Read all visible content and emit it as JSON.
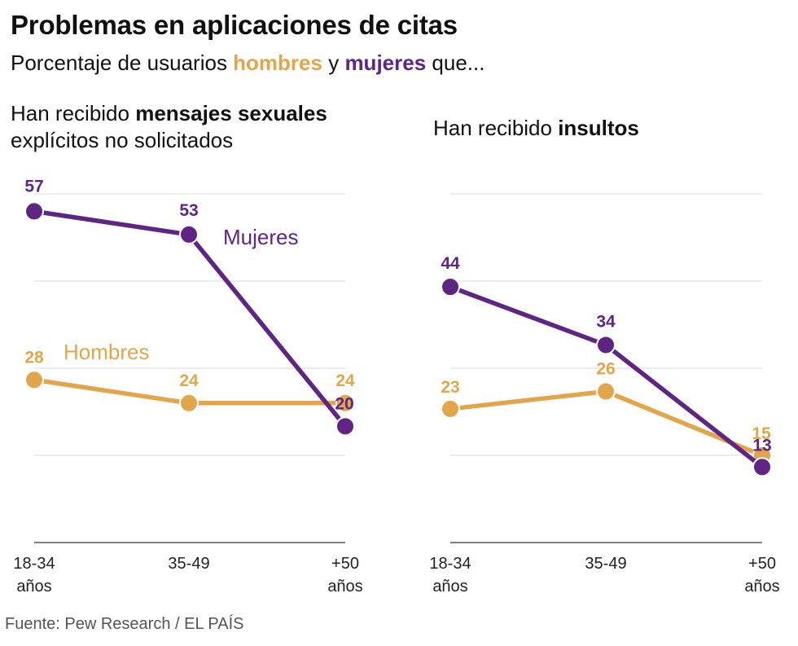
{
  "title": "Problemas en aplicaciones de citas",
  "subtitle": {
    "prefix": "Porcentaje de usuarios ",
    "men": "hombres",
    "middle": " y ",
    "women": "mujeres",
    "suffix": " que..."
  },
  "source": "Fuente: Pew Research / EL PAÍS",
  "colors": {
    "men": "#e2a54a",
    "women": "#5f2584",
    "grid": "#d9d9d9",
    "axis": "#555555"
  },
  "chart_data": [
    {
      "type": "line",
      "title_prefix": "Han recibido ",
      "title_bold": "mensajes sexuales",
      "title_line2": "explícitos no solicitados",
      "categories": [
        [
          "18-34",
          "años"
        ],
        [
          "35-49"
        ],
        [
          "+50",
          "años"
        ]
      ],
      "ylim": [
        0,
        60
      ],
      "grid": true,
      "series": [
        {
          "key": "women",
          "name": "Mujeres",
          "values": [
            57,
            53,
            20
          ]
        },
        {
          "key": "men",
          "name": "Hombres",
          "values": [
            28,
            24,
            24
          ]
        }
      ]
    },
    {
      "type": "line",
      "title_prefix": "Han recibido ",
      "title_bold": "insultos",
      "categories": [
        [
          "18-34",
          "años"
        ],
        [
          "35-49"
        ],
        [
          "+50",
          "años"
        ]
      ],
      "ylim": [
        0,
        60
      ],
      "grid": true,
      "series": [
        {
          "key": "women",
          "name": "Mujeres",
          "values": [
            44,
            34,
            13
          ]
        },
        {
          "key": "men",
          "name": "Hombres",
          "values": [
            23,
            26,
            15
          ]
        }
      ]
    }
  ]
}
